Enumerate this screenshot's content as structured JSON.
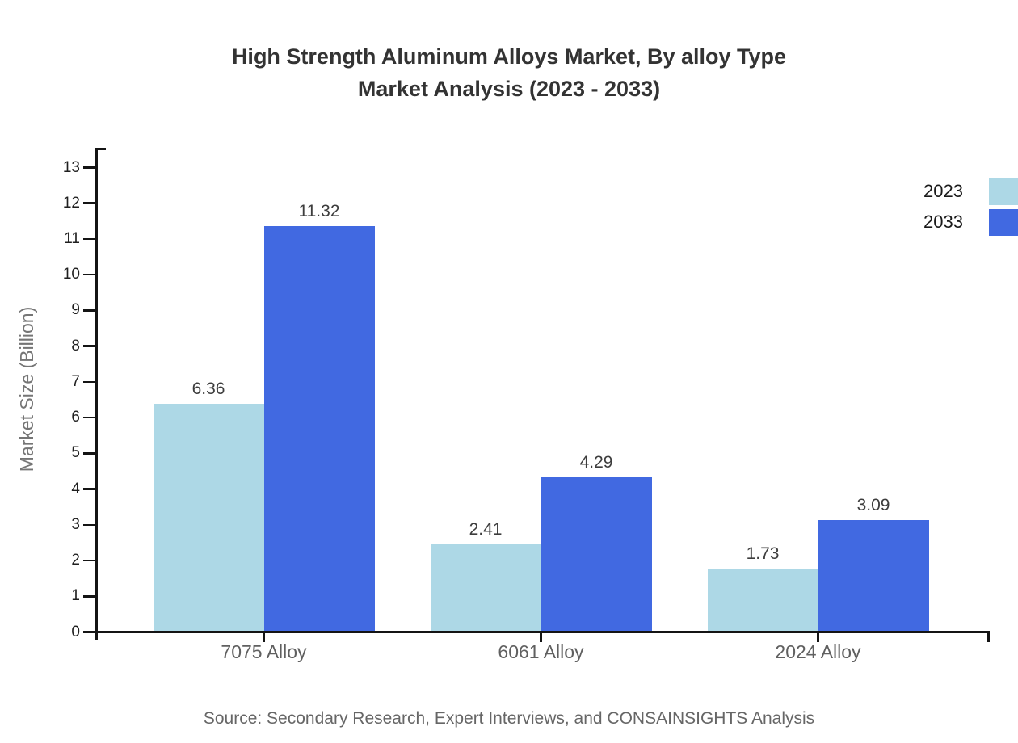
{
  "title": {
    "line1": "High Strength Aluminum Alloys Market, By alloy Type",
    "line2": "Market Analysis (2023 - 2033)"
  },
  "source": "Source: Secondary Research, Expert Interviews, and CONSAINSIGHTS Analysis",
  "chart_data": {
    "type": "bar",
    "title": "High Strength Aluminum Alloys Market, By alloy Type Market Analysis (2023 - 2033)",
    "categories": [
      "7075 Alloy",
      "6061 Alloy",
      "2024 Alloy"
    ],
    "series": [
      {
        "name": "2023",
        "color": "#ADD8E6",
        "values": [
          6.36,
          2.41,
          1.73
        ]
      },
      {
        "name": "2033",
        "color": "#4169E1",
        "values": [
          11.32,
          4.29,
          3.09
        ]
      }
    ],
    "xlabel": "",
    "ylabel": "Market Size (Billion)",
    "ylim": [
      0,
      13
    ],
    "ytick_step": 1,
    "grid": false,
    "legend_position": "upper-right",
    "axis_color": "#141414",
    "value_label_color": "#3d3d3d"
  }
}
